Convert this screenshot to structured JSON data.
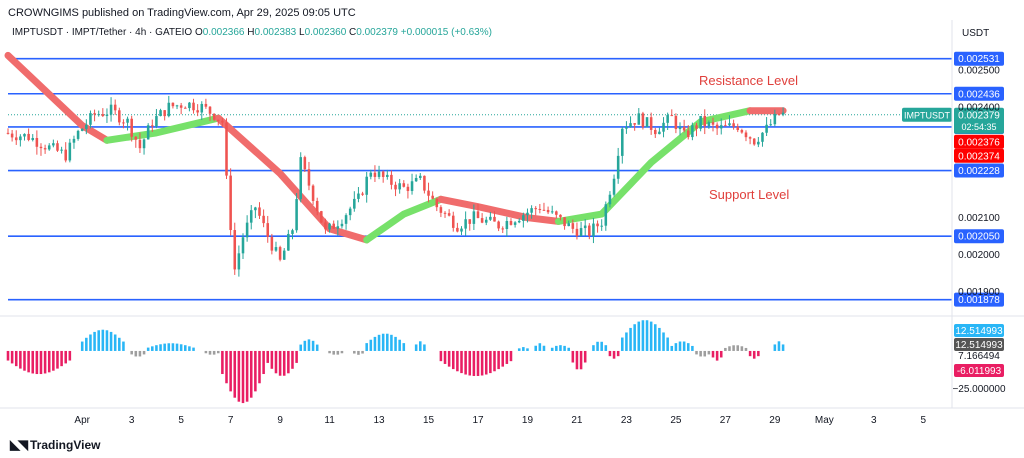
{
  "header": {
    "published": "CROWNGIMS published on TradingView.com, Apr 29, 2025 09:05 UTC",
    "symbol_line": "IMPTUSDT · IMPT/Tether · 4h · GATEIO",
    "ohlc": [
      {
        "label": "O",
        "value": "0.002366"
      },
      {
        "label": "H",
        "value": "0.002383"
      },
      {
        "label": "L",
        "value": "0.002360"
      },
      {
        "label": "C",
        "value": "0.002379"
      }
    ],
    "change": "+0.000015 (+0.63%)"
  },
  "branding": {
    "logo_text": "TradingView",
    "logo_icon": "tradingview-logo-icon"
  },
  "currency": "USDT",
  "annotations": {
    "resistance": "Resistance Level",
    "support": "Support Level"
  },
  "colors": {
    "up": "#26a69a",
    "down": "#ef5350",
    "hline": "#2962ff",
    "ribbon_up": "#77e16a",
    "ribbon_down": "#f06c6c",
    "hist_pos": "#29b6f6",
    "hist_neg": "#e91e63",
    "hist_gray": "#9e9e9e"
  },
  "chart_data": {
    "type": "candlestick",
    "timeframe": "4h",
    "price_axis": {
      "range": [
        0.00185,
        0.00256
      ],
      "ticks": [
        "0.002500",
        "0.002400",
        "0.002100",
        "0.002000",
        "0.001900"
      ]
    },
    "time_axis": {
      "range": [
        "2025-03-29",
        "2025-05-06"
      ],
      "ticks": [
        {
          "date": "2025-04-01",
          "label": "Apr"
        },
        {
          "date": "2025-04-03",
          "label": "3"
        },
        {
          "date": "2025-04-05",
          "label": "5"
        },
        {
          "date": "2025-04-07",
          "label": "7"
        },
        {
          "date": "2025-04-09",
          "label": "9"
        },
        {
          "date": "2025-04-11",
          "label": "11"
        },
        {
          "date": "2025-04-13",
          "label": "13"
        },
        {
          "date": "2025-04-15",
          "label": "15"
        },
        {
          "date": "2025-04-17",
          "label": "17"
        },
        {
          "date": "2025-04-19",
          "label": "19"
        },
        {
          "date": "2025-04-21",
          "label": "21"
        },
        {
          "date": "2025-04-23",
          "label": "23"
        },
        {
          "date": "2025-04-25",
          "label": "25"
        },
        {
          "date": "2025-04-27",
          "label": "27"
        },
        {
          "date": "2025-04-29",
          "label": "29"
        },
        {
          "date": "2025-05-01",
          "label": "May"
        },
        {
          "date": "2025-05-03",
          "label": "3"
        },
        {
          "date": "2025-05-05",
          "label": "5"
        }
      ]
    },
    "horizontal_levels": [
      {
        "value": 0.002531,
        "label": "0.002531"
      },
      {
        "value": 0.002436,
        "label": "0.002436"
      },
      {
        "value": 0.002346,
        "label": "0.002346"
      },
      {
        "value": 0.002228,
        "label": "0.002228"
      },
      {
        "value": 0.00205,
        "label": "0.002050"
      },
      {
        "value": 0.001878,
        "label": "0.001878"
      }
    ],
    "price_labels": [
      {
        "value": 0.002379,
        "text": "0.002379",
        "countdown": "02:54:35",
        "symbol": "IMPTUSDT",
        "color": "#26a69a"
      },
      {
        "value": 0.002376,
        "text": "0.002376",
        "color": "#ff0000"
      },
      {
        "value": 0.002374,
        "text": "0.002374",
        "color": "#ff0000"
      }
    ],
    "price_path": [
      [
        "2025-03-29T00:00",
        0.00233
      ],
      [
        "2025-03-30T00:00",
        0.00232
      ],
      [
        "2025-03-30T20:00",
        0.00229
      ],
      [
        "2025-03-31T12:00",
        0.00227
      ],
      [
        "2025-04-01T00:00",
        0.00233
      ],
      [
        "2025-04-01T16:00",
        0.00238
      ],
      [
        "2025-04-02T08:00",
        0.00239
      ],
      [
        "2025-04-03T00:00",
        0.00236
      ],
      [
        "2025-04-03T12:00",
        0.00229
      ],
      [
        "2025-04-04T00:00",
        0.00236
      ],
      [
        "2025-04-04T16:00",
        0.0024
      ],
      [
        "2025-04-05T08:00",
        0.00241
      ],
      [
        "2025-04-06T00:00",
        0.0024
      ],
      [
        "2025-04-06T12:00",
        0.00238
      ],
      [
        "2025-04-06T20:00",
        0.00236
      ],
      [
        "2025-04-07T00:00",
        0.0022
      ],
      [
        "2025-04-07T08:00",
        0.00196
      ],
      [
        "2025-04-07T16:00",
        0.00205
      ],
      [
        "2025-04-08T04:00",
        0.00213
      ],
      [
        "2025-04-08T16:00",
        0.00205
      ],
      [
        "2025-04-09T04:00",
        0.00198
      ],
      [
        "2025-04-09T16:00",
        0.00207
      ],
      [
        "2025-04-10T00:00",
        0.00225
      ],
      [
        "2025-04-10T12:00",
        0.00216
      ],
      [
        "2025-04-11T00:00",
        0.00206
      ],
      [
        "2025-04-11T16:00",
        0.0021
      ],
      [
        "2025-04-12T08:00",
        0.00215
      ],
      [
        "2025-04-12T20:00",
        0.00223
      ],
      [
        "2025-04-13T12:00",
        0.0022
      ],
      [
        "2025-04-14T04:00",
        0.00218
      ],
      [
        "2025-04-14T20:00",
        0.0022
      ],
      [
        "2025-04-15T12:00",
        0.00213
      ],
      [
        "2025-04-16T08:00",
        0.00208
      ],
      [
        "2025-04-17T00:00",
        0.0021
      ],
      [
        "2025-04-18T00:00",
        0.00208
      ],
      [
        "2025-04-19T00:00",
        0.00211
      ],
      [
        "2025-04-19T16:00",
        0.00213
      ],
      [
        "2025-04-20T08:00",
        0.0021
      ],
      [
        "2025-04-21T00:00",
        0.00207
      ],
      [
        "2025-04-21T16:00",
        0.00206
      ],
      [
        "2025-04-22T04:00",
        0.00209
      ],
      [
        "2025-04-22T16:00",
        0.00222
      ],
      [
        "2025-04-23T00:00",
        0.00235
      ],
      [
        "2025-04-23T16:00",
        0.00237
      ],
      [
        "2025-04-24T08:00",
        0.00234
      ],
      [
        "2025-04-25T00:00",
        0.00237
      ],
      [
        "2025-04-25T12:00",
        0.00232
      ],
      [
        "2025-04-26T04:00",
        0.00236
      ],
      [
        "2025-04-26T20:00",
        0.00234
      ],
      [
        "2025-04-27T16:00",
        0.00235
      ],
      [
        "2025-04-28T08:00",
        0.00231
      ],
      [
        "2025-04-28T20:00",
        0.00234
      ],
      [
        "2025-04-29T08:00",
        0.00238
      ]
    ],
    "ribbon": {
      "sections": [
        {
          "trend": "down",
          "path": [
            [
              "2025-03-29T00:00",
              0.00254
            ],
            [
              "2025-04-01T00:00",
              0.00235
            ],
            [
              "2025-04-02T00:00",
              0.00231
            ]
          ]
        },
        {
          "trend": "up",
          "path": [
            [
              "2025-04-02T00:00",
              0.00231
            ],
            [
              "2025-04-04T00:00",
              0.00233
            ],
            [
              "2025-04-06T12:00",
              0.00237
            ]
          ]
        },
        {
          "trend": "down",
          "path": [
            [
              "2025-04-06T12:00",
              0.00237
            ],
            [
              "2025-04-09T00:00",
              0.00222
            ],
            [
              "2025-04-11T00:00",
              0.00207
            ],
            [
              "2025-04-12T12:00",
              0.00204
            ]
          ]
        },
        {
          "trend": "up",
          "path": [
            [
              "2025-04-12T12:00",
              0.00204
            ],
            [
              "2025-04-14T00:00",
              0.00211
            ],
            [
              "2025-04-15T12:00",
              0.00215
            ]
          ]
        },
        {
          "trend": "down",
          "path": [
            [
              "2025-04-15T12:00",
              0.00215
            ],
            [
              "2025-04-17T00:00",
              0.00213
            ],
            [
              "2025-04-19T00:00",
              0.0021
            ],
            [
              "2025-04-20T06:00",
              0.00209
            ]
          ]
        },
        {
          "trend": "up",
          "path": [
            [
              "2025-04-20T06:00",
              0.00209
            ],
            [
              "2025-04-22T00:00",
              0.00211
            ],
            [
              "2025-04-24T00:00",
              0.00225
            ],
            [
              "2025-04-26T00:00",
              0.00236
            ],
            [
              "2025-04-28T00:00",
              0.00239
            ]
          ]
        },
        {
          "trend": "down",
          "path": [
            [
              "2025-04-28T00:00",
              0.00239
            ],
            [
              "2025-04-29T08:00",
              0.00239
            ]
          ]
        }
      ]
    },
    "indicator": {
      "name": "histogram",
      "axis_range": [
        -28,
        15
      ],
      "ticks": [
        {
          "value": 12.514993,
          "text": "12.514993",
          "bg": "#29b6f6"
        },
        {
          "value": 7.166494,
          "text": "7.166494"
        },
        {
          "value": -6.011993,
          "text": "-6.011993",
          "bg": "#e91e63"
        },
        {
          "value": -25.0,
          "text": "−25.000000"
        }
      ],
      "label_badges": [
        {
          "value": 12.514993,
          "text": "12.514993",
          "bg": "#555555"
        }
      ],
      "segments": [
        {
          "from": "2025-03-29T00:00",
          "to": "2025-03-31T12:00",
          "peak": -12,
          "color": "neg"
        },
        {
          "from": "2025-04-01T00:00",
          "to": "2025-04-02T16:00",
          "peak": 11,
          "color": "pos"
        },
        {
          "from": "2025-04-03T00:00",
          "to": "2025-04-03T12:00",
          "peak": -3,
          "color": "gray"
        },
        {
          "from": "2025-04-03T16:00",
          "to": "2025-04-05T12:00",
          "peak": 4,
          "color": "pos"
        },
        {
          "from": "2025-04-06T00:00",
          "to": "2025-04-06T12:00",
          "peak": -2,
          "color": "gray"
        },
        {
          "from": "2025-04-06T16:00",
          "to": "2025-04-08T08:00",
          "peak": -27,
          "color": "neg"
        },
        {
          "from": "2025-04-08T12:00",
          "to": "2025-04-09T16:00",
          "peak": -13,
          "color": "neg"
        },
        {
          "from": "2025-04-09T20:00",
          "to": "2025-04-10T12:00",
          "peak": 6,
          "color": "pos"
        },
        {
          "from": "2025-04-11T00:00",
          "to": "2025-04-11T12:00",
          "peak": -2,
          "color": "gray"
        },
        {
          "from": "2025-04-12T00:00",
          "to": "2025-04-12T08:00",
          "peak": -2,
          "color": "gray"
        },
        {
          "from": "2025-04-12T12:00",
          "to": "2025-04-14T00:00",
          "peak": 9,
          "color": "pos"
        },
        {
          "from": "2025-04-14T12:00",
          "to": "2025-04-14T20:00",
          "peak": 5,
          "color": "pos"
        },
        {
          "from": "2025-04-15T12:00",
          "to": "2025-04-18T08:00",
          "peak": -13,
          "color": "neg"
        },
        {
          "from": "2025-04-18T16:00",
          "to": "2025-04-19T00:00",
          "peak": 2,
          "color": "pos"
        },
        {
          "from": "2025-04-19T08:00",
          "to": "2025-04-19T16:00",
          "peak": 4,
          "color": "pos"
        },
        {
          "from": "2025-04-20T00:00",
          "to": "2025-04-20T16:00",
          "peak": 3,
          "color": "pos"
        },
        {
          "from": "2025-04-20T20:00",
          "to": "2025-04-21T08:00",
          "peak": -10,
          "color": "neg"
        },
        {
          "from": "2025-04-21T16:00",
          "to": "2025-04-22T04:00",
          "peak": 5,
          "color": "pos"
        },
        {
          "from": "2025-04-22T08:00",
          "to": "2025-04-22T16:00",
          "peak": -4,
          "color": "neg"
        },
        {
          "from": "2025-04-22T20:00",
          "to": "2025-04-24T16:00",
          "peak": 16,
          "color": "pos"
        },
        {
          "from": "2025-04-24T20:00",
          "to": "2025-04-25T16:00",
          "peak": 5,
          "color": "pos"
        },
        {
          "from": "2025-04-25T20:00",
          "to": "2025-04-26T08:00",
          "peak": -3,
          "color": "gray"
        },
        {
          "from": "2025-04-26T12:00",
          "to": "2025-04-26T20:00",
          "peak": -5,
          "color": "neg"
        },
        {
          "from": "2025-04-27T00:00",
          "to": "2025-04-27T20:00",
          "peak": 3,
          "color": "gray"
        },
        {
          "from": "2025-04-28T00:00",
          "to": "2025-04-28T08:00",
          "peak": -4,
          "color": "neg"
        },
        {
          "from": "2025-04-29T00:00",
          "to": "2025-04-29T08:00",
          "peak": 5,
          "color": "pos"
        }
      ]
    }
  }
}
